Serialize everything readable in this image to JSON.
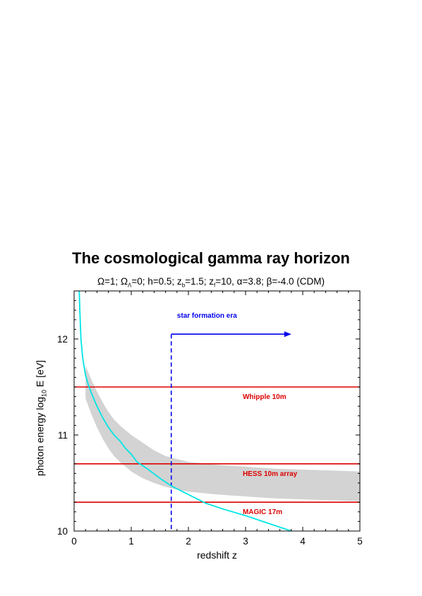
{
  "chart_data": {
    "type": "line",
    "title": "The cosmological gamma ray horizon",
    "subtitle": {
      "parts": [
        {
          "t": "Ω=1; Ω"
        },
        {
          "sub": "Λ"
        },
        {
          "t": "=0; h=0.5; z"
        },
        {
          "sub": "b"
        },
        {
          "t": "=1.5; z"
        },
        {
          "sub": "f"
        },
        {
          "t": "=10, α=3.8; β=-4.0 (CDM)"
        }
      ]
    },
    "xlabel": "redshift z",
    "ylabel": {
      "pre": "photon energy log",
      "sub": "10",
      "post": " E [eV]"
    },
    "xlim": [
      0,
      5
    ],
    "ylim": [
      10,
      12.5
    ],
    "x_ticks": [
      0,
      1,
      2,
      3,
      4,
      5
    ],
    "x_tick_labels": [
      "0",
      "1",
      "2",
      "3",
      "4",
      "5"
    ],
    "y_ticks": [
      10,
      11,
      12
    ],
    "y_tick_labels": [
      "10",
      "11",
      "12"
    ],
    "horizon_curve": {
      "color": "#00e5e5",
      "x": [
        0.09,
        0.1,
        0.12,
        0.15,
        0.2,
        0.25,
        0.3,
        0.4,
        0.5,
        0.6,
        0.7,
        0.8,
        0.9,
        1.0,
        1.1,
        1.2,
        1.3,
        1.5,
        1.7,
        2.0,
        2.3,
        2.6,
        3.0,
        3.4,
        3.8
      ],
      "y": [
        12.5,
        12.3,
        12.0,
        11.8,
        11.62,
        11.52,
        11.44,
        11.3,
        11.18,
        11.08,
        11.0,
        10.94,
        10.86,
        10.8,
        10.72,
        10.68,
        10.64,
        10.55,
        10.47,
        10.38,
        10.29,
        10.23,
        10.16,
        10.08,
        10.0
      ]
    },
    "uncertainty_band": {
      "color": "#d3d3d3",
      "x": [
        0.2,
        0.3,
        0.4,
        0.5,
        0.6,
        0.7,
        0.8,
        0.9,
        1.0,
        1.2,
        1.4,
        1.6,
        1.8,
        2.0,
        2.5,
        3.0,
        3.5,
        4.0,
        4.5,
        5.0
      ],
      "upper": [
        11.72,
        11.58,
        11.45,
        11.34,
        11.24,
        11.16,
        11.1,
        11.05,
        11.0,
        10.92,
        10.84,
        10.78,
        10.75,
        10.72,
        10.69,
        10.67,
        10.65,
        10.64,
        10.63,
        10.62
      ],
      "lower": [
        11.38,
        11.22,
        11.08,
        10.96,
        10.86,
        10.78,
        10.72,
        10.67,
        10.62,
        10.55,
        10.5,
        10.46,
        10.43,
        10.41,
        10.38,
        10.36,
        10.34,
        10.33,
        10.32,
        10.31
      ]
    },
    "thresholds": [
      {
        "label": "Whipple 10m",
        "y": 11.5,
        "label_x": 2.95,
        "color": "#dd0000"
      },
      {
        "label": "HESS 10m array",
        "y": 10.7,
        "label_x": 2.95,
        "color": "#dd0000"
      },
      {
        "label": "MAGIC 17m",
        "y": 10.3,
        "label_x": 2.95,
        "color": "#dd0000"
      }
    ],
    "star_formation": {
      "label": "star formation era",
      "color": "#0000ee",
      "z_start": 1.7,
      "y_top": 12.05,
      "arrow_end_x": 3.8,
      "label_x": 1.8,
      "label_y": 12.25
    }
  }
}
